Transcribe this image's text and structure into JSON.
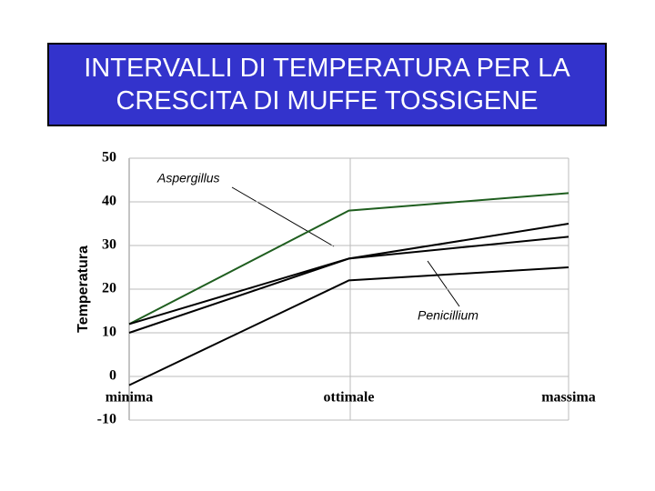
{
  "chart_data": {
    "type": "line",
    "title": "INTERVALLI DI TEMPERATURA PER LA CRESCITA DI MUFFE TOSSIGENE",
    "y_label": "Temperatura",
    "categories": [
      "minima",
      "ottimale",
      "massima"
    ],
    "series": [
      {
        "color": "#1f5e1f",
        "values": [
          12,
          38,
          42
        ]
      },
      {
        "color": "#000000",
        "values": [
          12,
          27,
          35
        ]
      },
      {
        "color": "#000000",
        "values": [
          10,
          27,
          32
        ]
      },
      {
        "color": "#000000",
        "values": [
          -2,
          22,
          25
        ]
      }
    ],
    "annotations": [
      "Aspergillus",
      "Penicillium"
    ],
    "ylim": [
      -10,
      50
    ],
    "yticks": [
      -10,
      0,
      10,
      20,
      30,
      40,
      50
    ],
    "grid": true
  }
}
